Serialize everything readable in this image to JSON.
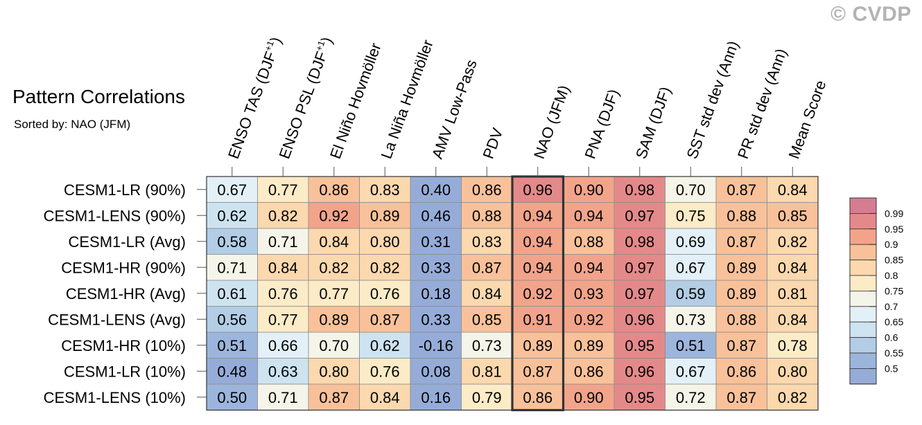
{
  "watermark": "© CVDP",
  "chart_data": {
    "type": "heatmap",
    "title": "Pattern Correlations",
    "subtitle": "Sorted by: NAO (JFM)",
    "highlight_column": "NAO (JFM)",
    "columns": [
      {
        "label": "ENSO TAS (DJF",
        "sup": "+1",
        "close": ")"
      },
      {
        "label": "ENSO PSL (DJF",
        "sup": "+1",
        "close": ")"
      },
      {
        "label": "El Niño Hovmöller"
      },
      {
        "label": "La Niña Hovmöller"
      },
      {
        "label": "AMV Low-Pass"
      },
      {
        "label": "PDV"
      },
      {
        "label": "NAO (JFM)"
      },
      {
        "label": "PNA (DJF)"
      },
      {
        "label": "SAM (DJF)"
      },
      {
        "label": "SST std dev (Ann)"
      },
      {
        "label": "PR std dev (Ann)"
      },
      {
        "label": "Mean Score"
      }
    ],
    "rows": [
      {
        "name": "CESM1-LR (90%)",
        "values": [
          "0.67",
          "0.77",
          "0.86",
          "0.83",
          "0.40",
          "0.86",
          "0.96",
          "0.90",
          "0.98",
          "0.70",
          "0.87",
          "0.84"
        ]
      },
      {
        "name": "CESM1-LENS (90%)",
        "values": [
          "0.62",
          "0.82",
          "0.92",
          "0.89",
          "0.46",
          "0.88",
          "0.94",
          "0.94",
          "0.97",
          "0.75",
          "0.88",
          "0.85"
        ]
      },
      {
        "name": "CESM1-LR (Avg)",
        "values": [
          "0.58",
          "0.71",
          "0.84",
          "0.80",
          "0.31",
          "0.83",
          "0.94",
          "0.88",
          "0.98",
          "0.69",
          "0.87",
          "0.82"
        ]
      },
      {
        "name": "CESM1-HR (90%)",
        "values": [
          "0.71",
          "0.84",
          "0.82",
          "0.82",
          "0.33",
          "0.87",
          "0.94",
          "0.94",
          "0.97",
          "0.67",
          "0.89",
          "0.84"
        ]
      },
      {
        "name": "CESM1-HR (Avg)",
        "values": [
          "0.61",
          "0.76",
          "0.77",
          "0.76",
          "0.18",
          "0.84",
          "0.92",
          "0.93",
          "0.97",
          "0.59",
          "0.89",
          "0.81"
        ]
      },
      {
        "name": "CESM1-LENS (Avg)",
        "values": [
          "0.56",
          "0.77",
          "0.89",
          "0.87",
          "0.33",
          "0.85",
          "0.91",
          "0.92",
          "0.96",
          "0.73",
          "0.88",
          "0.84"
        ]
      },
      {
        "name": "CESM1-HR (10%)",
        "values": [
          "0.51",
          "0.66",
          "0.70",
          "0.62",
          "-0.16",
          "0.73",
          "0.89",
          "0.89",
          "0.95",
          "0.51",
          "0.87",
          "0.78"
        ]
      },
      {
        "name": "CESM1-LR (10%)",
        "values": [
          "0.48",
          "0.63",
          "0.80",
          "0.76",
          "0.08",
          "0.81",
          "0.87",
          "0.86",
          "0.96",
          "0.67",
          "0.86",
          "0.80"
        ]
      },
      {
        "name": "CESM1-LENS (10%)",
        "values": [
          "0.50",
          "0.71",
          "0.87",
          "0.84",
          "0.16",
          "0.79",
          "0.86",
          "0.90",
          "0.95",
          "0.72",
          "0.87",
          "0.82"
        ]
      }
    ],
    "colorbar": {
      "ticks": [
        "0.99",
        "0.95",
        "0.9",
        "0.85",
        "0.8",
        "0.75",
        "0.7",
        "0.65",
        "0.6",
        "0.55",
        "0.5"
      ],
      "bins": [
        {
          "min": 0.99,
          "color": "#d57d91"
        },
        {
          "min": 0.95,
          "color": "#e4898a"
        },
        {
          "min": 0.9,
          "color": "#f2a48b"
        },
        {
          "min": 0.85,
          "color": "#f8c19a"
        },
        {
          "min": 0.8,
          "color": "#fbd8ae"
        },
        {
          "min": 0.75,
          "color": "#fcebc7"
        },
        {
          "min": 0.7,
          "color": "#f5f4e8"
        },
        {
          "min": 0.65,
          "color": "#e3f0f7"
        },
        {
          "min": 0.6,
          "color": "#cde3f0"
        },
        {
          "min": 0.55,
          "color": "#b2cde5"
        },
        {
          "min": 0.5,
          "color": "#9cb5dc"
        },
        {
          "min": -9,
          "color": "#96acd8"
        }
      ]
    }
  }
}
